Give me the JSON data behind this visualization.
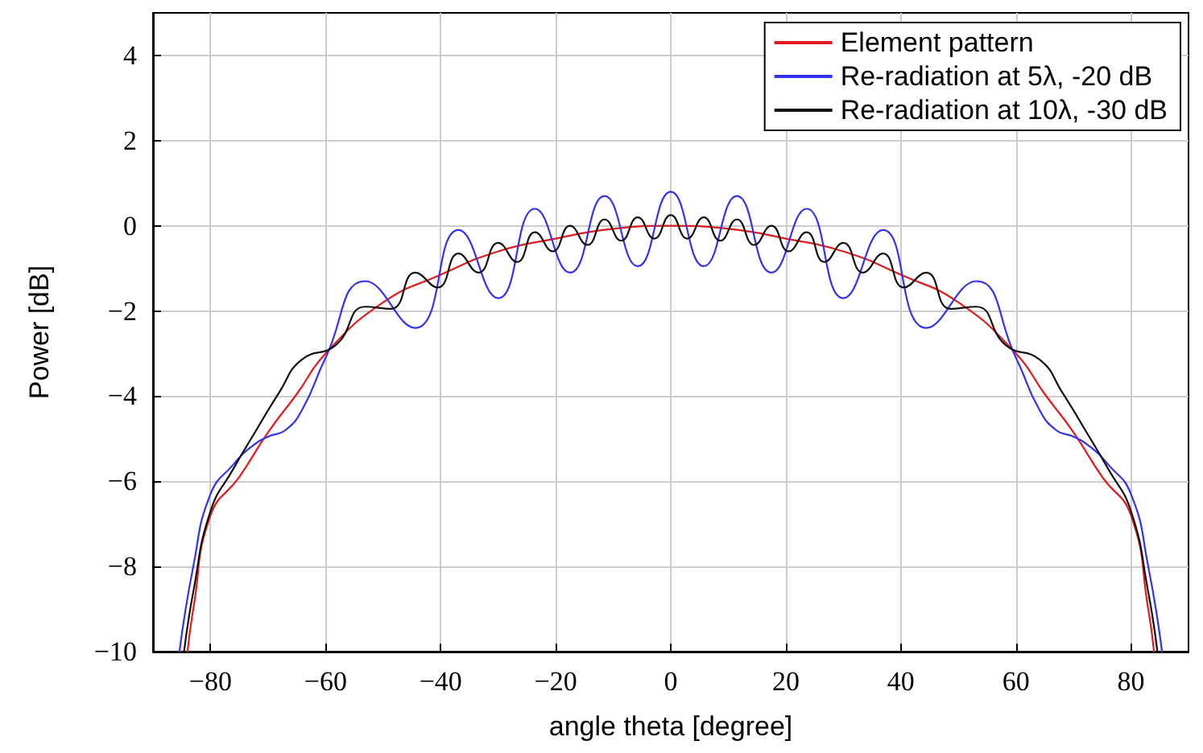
{
  "chart_data": {
    "type": "line",
    "xlabel": "angle theta [degree]",
    "ylabel": "Power [dB]",
    "xlim": [
      -90,
      90
    ],
    "ylim": [
      -10,
      5
    ],
    "xticks": [
      -80,
      -60,
      -40,
      -20,
      0,
      20,
      40,
      60,
      80
    ],
    "yticks": [
      -10,
      -8,
      -6,
      -4,
      -2,
      0,
      2,
      4
    ],
    "grid": true,
    "legend": "top right",
    "marker": "none",
    "line_style": "solid",
    "series": [
      {
        "name": "Element pattern",
        "color": "#e31a1c",
        "x": [
          -84,
          -83,
          -80,
          -75,
          -70,
          -65,
          -60,
          -50,
          -40,
          -30,
          -20,
          -10,
          0,
          10,
          20,
          30,
          40,
          50,
          60,
          65,
          70,
          75,
          80,
          83,
          84
        ],
        "values": [
          -10,
          -9.0,
          -6.8,
          -5.9,
          -4.85,
          -3.95,
          -3.0,
          -1.8,
          -1.15,
          -0.6,
          -0.3,
          -0.07,
          0,
          -0.07,
          -0.3,
          -0.6,
          -1.15,
          -1.8,
          -3.0,
          -3.95,
          -4.85,
          -5.9,
          -6.8,
          -9.0,
          -10
        ]
      },
      {
        "name": "Re-radiation at 5λ, -20 dB",
        "color": "#3333ee",
        "x": [
          -85.4,
          -83,
          -80,
          -76,
          -73,
          -70,
          -67,
          -64,
          -60,
          -53.1,
          -44.4,
          -36.9,
          -30,
          -23.6,
          -17.5,
          -11.5,
          -5.74,
          0,
          5.74,
          11.5,
          17.5,
          23.6,
          30,
          36.9,
          44.4,
          53.1,
          60,
          64,
          67,
          70,
          73,
          76,
          80,
          83,
          85.4
        ],
        "values": [
          -10,
          -8.0,
          -6.3,
          -5.6,
          -5.2,
          -4.95,
          -4.8,
          -4.3,
          -3.1,
          -1.3,
          -2.4,
          -0.1,
          -1.7,
          0.4,
          -1.1,
          0.7,
          -0.95,
          0.8,
          -0.95,
          0.7,
          -1.1,
          0.4,
          -1.7,
          -0.1,
          -2.4,
          -1.3,
          -3.1,
          -4.3,
          -4.8,
          -4.95,
          -5.2,
          -5.6,
          -6.3,
          -8.0,
          -10
        ]
      },
      {
        "name": "Re-radiation at 10λ, -30 dB",
        "color": "#111111",
        "x": [
          -84.6,
          -83,
          -80,
          -76,
          -72.5,
          -68,
          -64.2,
          -58.2,
          -53.1,
          -48.6,
          -44.4,
          -40.5,
          -36.9,
          -33.4,
          -30,
          -26.7,
          -23.6,
          -20.5,
          -17.5,
          -14.5,
          -11.5,
          -8.6,
          -5.74,
          -2.87,
          0,
          2.87,
          5.74,
          8.6,
          11.5,
          14.5,
          17.5,
          20.5,
          23.6,
          26.7,
          30,
          33.4,
          36.9,
          40.5,
          44.4,
          48.6,
          53.1,
          58.2,
          64.2,
          68,
          72.5,
          76,
          80,
          83,
          84.6
        ],
        "values": [
          -10,
          -8.6,
          -6.7,
          -5.7,
          -4.9,
          -3.9,
          -3.15,
          -2.8,
          -1.9,
          -1.95,
          -1.1,
          -1.45,
          -0.65,
          -1.1,
          -0.4,
          -0.85,
          -0.15,
          -0.6,
          0.0,
          -0.45,
          0.15,
          -0.35,
          0.2,
          -0.3,
          0.25,
          -0.3,
          0.2,
          -0.35,
          0.15,
          -0.45,
          0.0,
          -0.6,
          -0.15,
          -0.85,
          -0.4,
          -1.1,
          -0.65,
          -1.45,
          -1.1,
          -1.95,
          -1.9,
          -2.8,
          -3.15,
          -3.9,
          -4.9,
          -5.7,
          -6.7,
          -8.6,
          -10
        ]
      }
    ]
  }
}
